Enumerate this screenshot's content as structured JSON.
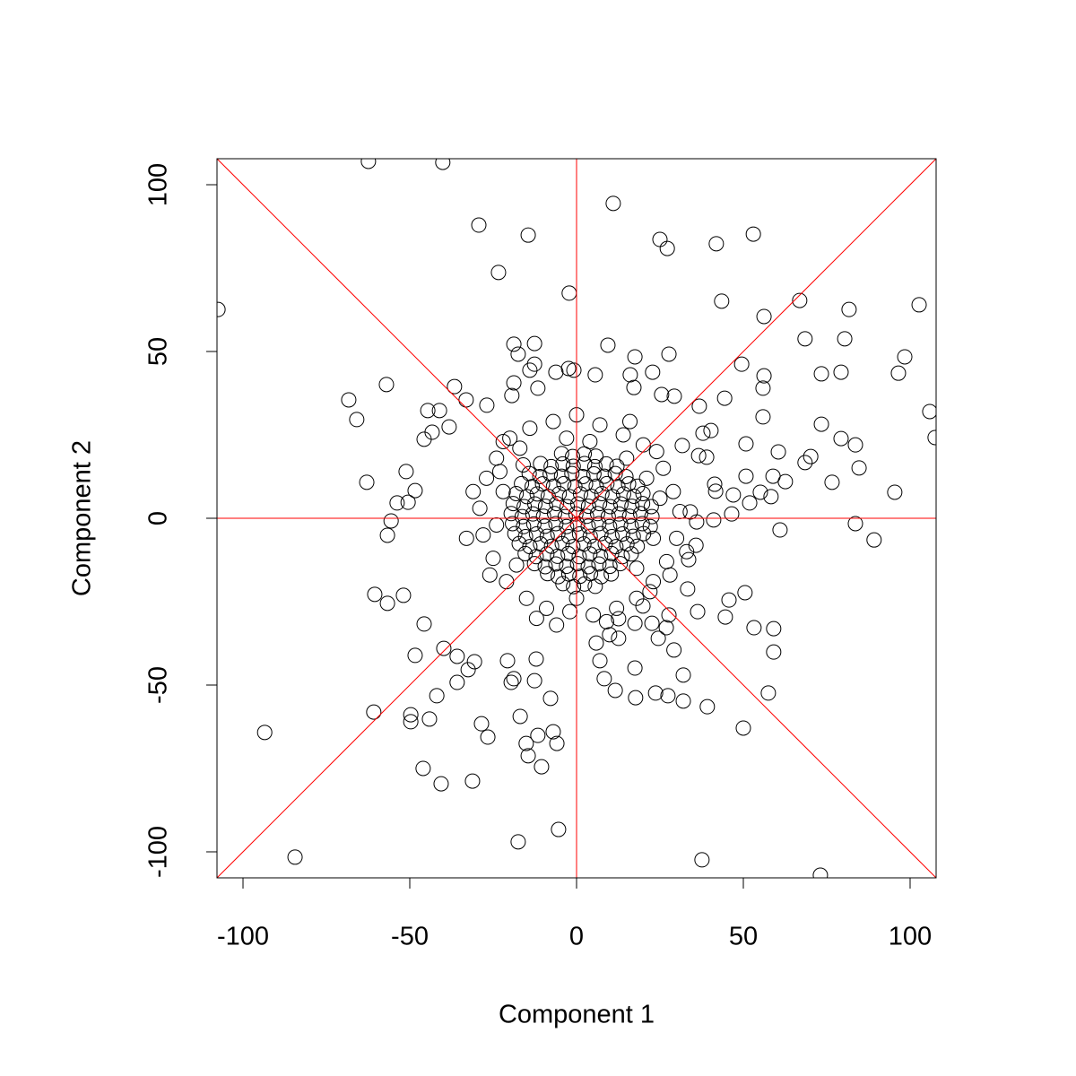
{
  "chart_data": {
    "type": "scatter",
    "x_label": "Component 1",
    "y_label": "Component 2",
    "xlim": [
      -107.8,
      107.8
    ],
    "ylim": [
      -107.8,
      107.8
    ],
    "xticks": [
      -100,
      -50,
      0,
      50,
      100
    ],
    "yticks": [
      -100,
      -50,
      0,
      50,
      100
    ],
    "marker_color": "#000000",
    "reference_line_color": "#ff0000",
    "x": [
      -107.5,
      -62.4,
      -40.1,
      -29.3,
      -14.5,
      -23.4,
      -2.2,
      11.0,
      25.0,
      27.2,
      41.9,
      53.0,
      43.5,
      56.2,
      66.9,
      81.7,
      102.7,
      68.5,
      80.4,
      98.4,
      96.5,
      79.3,
      73.4,
      56.2,
      49.5,
      105.9,
      107.5,
      79.3,
      83.6,
      73.4,
      70.2,
      68.5,
      62.6,
      76.6,
      84.7,
      95.4,
      83.6,
      89.2,
      61.0,
      60.5,
      55.9,
      55.9,
      50.8,
      50.8,
      58.9,
      58.3,
      55.1,
      51.9,
      46.5,
      47.0,
      50.5,
      53.2,
      59.1,
      59.1,
      57.5,
      50.0,
      45.7,
      44.6,
      39.2,
      37.6,
      73.1,
      32.0,
      27.4,
      23.7,
      32.0,
      29.2,
      11.6,
      17.7,
      17.5,
      7.0,
      8.3,
      -5.4,
      -17.5,
      -84.4,
      -93.5,
      -60.8,
      -49.7,
      -49.7,
      -44.1,
      -46.0,
      -40.6,
      -31.2,
      -28.5,
      -26.6,
      -16.9,
      -15.1,
      -11.6,
      -10.5,
      -7.0,
      -5.9,
      -7.8,
      -14.5,
      -41.9,
      -48.4,
      -39.8,
      -35.8,
      -32.5,
      -30.6,
      -35.8,
      -45.7,
      -60.5,
      -56.7,
      -51.9,
      -19.6,
      -18.8,
      -12.6,
      -12.1,
      -20.7,
      -68.3,
      -65.9,
      -57.0,
      -62.9,
      -51.1,
      -50.5,
      -53.8,
      -55.6,
      -56.7,
      -48.4,
      -44.6,
      -41.1,
      -45.7,
      -43.3,
      -36.6,
      -33.1,
      -26.9,
      -38.2,
      -18.8,
      -12.6,
      -17.5,
      -12.6,
      -14.0,
      -6.2,
      -2.4,
      -0.8,
      -11.6,
      -18.8,
      -19.4,
      5.6,
      9.4,
      17.5,
      27.7,
      22.8,
      16.1,
      17.2,
      25.5,
      29.3,
      36.8,
      44.4,
      40.3,
      37.9,
      31.7,
      36.6,
      39.0,
      41.4,
      41.7,
      41.1,
      36.0,
      34.1,
      35.8,
      33.6,
      33.3,
      36.3,
      27.7,
      26.9,
      24.5,
      22.6,
      19.9,
      17.5,
      12.6,
      12.6,
      9.9,
      5.9,
      -27,
      -24,
      -20,
      -14,
      -7,
      0,
      7,
      14,
      20,
      26,
      29,
      31,
      30,
      27,
      23,
      18,
      12,
      5,
      -2,
      -9,
      -15,
      -21,
      -25,
      -28,
      -29,
      -31,
      -26,
      -22,
      22,
      33,
      -33,
      -6,
      9,
      16,
      -17,
      24,
      -12,
      28,
      -23,
      25,
      -24,
      23,
      -22,
      21,
      0,
      -3,
      4,
      -18,
      18,
      15,
      -16,
      -4.5,
      -1.2,
      2.3,
      5.8,
      -10.8,
      -7.6,
      -4.1,
      -1.0,
      2.4,
      5.5,
      8.9,
      12.1,
      -14.2,
      -11.0,
      -7.9,
      -4.5,
      -1.4,
      1.9,
      5.2,
      8.3,
      11.6,
      14.8,
      -16.5,
      -13.3,
      -10.2,
      -6.9,
      -3.8,
      -0.5,
      2.7,
      5.9,
      9.1,
      12.4,
      15.6,
      18.3,
      -18.1,
      -14.9,
      -11.8,
      -8.5,
      -5.2,
      -2.1,
      1.2,
      4.4,
      7.6,
      10.8,
      14.1,
      17.2,
      19.9,
      -19.0,
      -15.7,
      -12.5,
      -9.3,
      -6.0,
      -2.8,
      0.4,
      3.6,
      6.9,
      10.1,
      13.3,
      16.6,
      19.8,
      22.4,
      -19.6,
      -16.3,
      -13.1,
      -9.9,
      -6.6,
      -3.4,
      -0.2,
      3.0,
      6.3,
      9.5,
      12.7,
      15.9,
      19.2,
      22.6,
      -19.2,
      -15.9,
      -12.8,
      -9.5,
      -6.2,
      -3.0,
      0.3,
      3.5,
      6.7,
      9.9,
      13.2,
      16.4,
      19.7,
      22.1,
      -18.5,
      -15.3,
      -12.0,
      -8.8,
      -5.6,
      -2.3,
      0.9,
      4.1,
      7.3,
      10.6,
      13.8,
      17.0,
      20.1,
      -17.2,
      -14.0,
      -10.8,
      -7.5,
      -4.3,
      -1.1,
      2.2,
      5.4,
      8.6,
      11.8,
      15.1,
      18.2,
      -15.4,
      -12.1,
      -8.9,
      -5.7,
      -2.5,
      0.8,
      4.0,
      7.2,
      10.5,
      13.7,
      16.4,
      -12.6,
      -9.4,
      -6.2,
      -3.0,
      0.3,
      3.5,
      6.7,
      10.0,
      13.1,
      -8.7,
      -5.5,
      -2.3,
      1.0,
      4.2,
      7.4,
      10.4,
      -4.1,
      -0.9,
      2.4,
      5.6
    ],
    "values": [
      62.6,
      107,
      106.7,
      87.9,
      84.9,
      73.7,
      67.5,
      94.4,
      83.6,
      80.9,
      82.3,
      85.2,
      65.1,
      60.5,
      65.3,
      62.6,
      64.0,
      53.8,
      53.8,
      48.4,
      43.5,
      43.8,
      43.3,
      42.7,
      46.2,
      32.0,
      24.2,
      23.9,
      22.0,
      28.2,
      18.5,
      16.7,
      11.0,
      10.8,
      15.1,
      7.8,
      -1.6,
      -6.5,
      -3.5,
      19.9,
      39.0,
      30.4,
      22.3,
      12.6,
      12.6,
      6.5,
      7.8,
      4.6,
      1.3,
      7.0,
      -22.3,
      -32.8,
      -33.1,
      -40.1,
      -52.4,
      -62.9,
      -24.5,
      -29.6,
      -56.5,
      -102.4,
      -107,
      -54.8,
      -53.2,
      -52.4,
      -47.0,
      -39.5,
      -51.6,
      -53.8,
      -44.9,
      -42.7,
      -48.1,
      -93.3,
      -97.0,
      -101.6,
      -64.2,
      -58.1,
      -58.9,
      -61.0,
      -60.2,
      -75.0,
      -79.6,
      -78.8,
      -61.6,
      -65.6,
      -59.4,
      -67.5,
      -65.1,
      -74.5,
      -64.0,
      -67.5,
      -54.0,
      -71.2,
      -53.2,
      -41.1,
      -39.0,
      -41.4,
      -45.4,
      -43.0,
      -49.2,
      -31.7,
      -22.8,
      -25.5,
      -23.1,
      -49.2,
      -48.1,
      -48.7,
      -42.2,
      -42.7,
      35.5,
      29.6,
      40.1,
      10.8,
      14.0,
      4.8,
      4.6,
      -0.8,
      -5.1,
      8.3,
      32.3,
      32.3,
      23.7,
      25.8,
      39.5,
      35.5,
      33.9,
      27.4,
      52.2,
      52.4,
      49.2,
      46.2,
      44.4,
      43.8,
      44.9,
      44.4,
      39.0,
      40.6,
      36.8,
      43.0,
      51.9,
      48.4,
      49.2,
      43.8,
      43.0,
      39.2,
      37.1,
      36.6,
      33.6,
      36.0,
      26.3,
      25.5,
      21.8,
      18.8,
      18.3,
      10.2,
      8.1,
      -0.5,
      -1.1,
      1.9,
      -8.1,
      -12.4,
      -21.2,
      -28.0,
      -29.0,
      -32.8,
      -36.0,
      -31.5,
      -26.3,
      -31.5,
      -30.1,
      -36.0,
      -34.9,
      -37.4,
      12,
      18,
      24,
      27,
      29,
      31,
      28,
      25,
      22,
      15,
      8,
      2,
      -6,
      -13,
      -19,
      -24,
      -27,
      -29,
      -28,
      -27,
      -24,
      -19,
      -12,
      -5,
      3,
      8,
      -17,
      23,
      -22,
      -10,
      -6,
      -32,
      -31,
      29,
      21,
      20,
      -30,
      -17,
      14,
      6,
      -2,
      -6,
      8,
      12,
      -24,
      24,
      23,
      -14,
      -15,
      18,
      16,
      19.4,
      18.5,
      19.3,
      18.6,
      16.4,
      15.5,
      16.3,
      15.6,
      16.4,
      15.5,
      16.3,
      15.6,
      13.4,
      12.5,
      13.3,
      12.6,
      13.4,
      12.5,
      13.3,
      12.6,
      13.4,
      12.5,
      10.4,
      9.5,
      10.3,
      9.6,
      10.4,
      9.5,
      10.3,
      9.6,
      10.4,
      9.5,
      10.3,
      9.6,
      7.4,
      6.5,
      7.3,
      6.6,
      7.4,
      6.5,
      7.3,
      6.6,
      7.4,
      6.5,
      7.3,
      6.6,
      7.4,
      4.4,
      3.5,
      4.3,
      3.6,
      4.4,
      3.5,
      4.3,
      3.6,
      4.4,
      3.5,
      4.3,
      3.6,
      4.4,
      3.5,
      1.4,
      0.5,
      1.3,
      0.6,
      1.4,
      0.5,
      1.3,
      0.6,
      1.4,
      0.5,
      1.3,
      0.6,
      1.4,
      0.5,
      -1.6,
      -2.5,
      -1.7,
      -2.4,
      -1.6,
      -2.5,
      -1.7,
      -2.4,
      -1.6,
      -2.5,
      -1.7,
      -2.4,
      -1.6,
      -2.5,
      -4.6,
      -5.5,
      -4.7,
      -5.4,
      -4.6,
      -5.5,
      -4.7,
      -5.4,
      -4.6,
      -5.5,
      -4.7,
      -5.4,
      -4.6,
      -7.6,
      -8.5,
      -7.7,
      -8.4,
      -7.6,
      -8.5,
      -7.7,
      -8.4,
      -7.6,
      -8.5,
      -7.7,
      -8.4,
      -10.6,
      -11.5,
      -10.7,
      -11.4,
      -10.6,
      -11.5,
      -10.7,
      -11.4,
      -10.6,
      -11.5,
      -10.7,
      -13.6,
      -14.5,
      -13.7,
      -14.4,
      -13.6,
      -14.5,
      -13.7,
      -14.4,
      -13.6,
      -16.6,
      -17.5,
      -16.7,
      -17.4,
      -16.6,
      -17.5,
      -16.7,
      -19.6,
      -20.5,
      -19.7,
      -20.4
    ]
  }
}
